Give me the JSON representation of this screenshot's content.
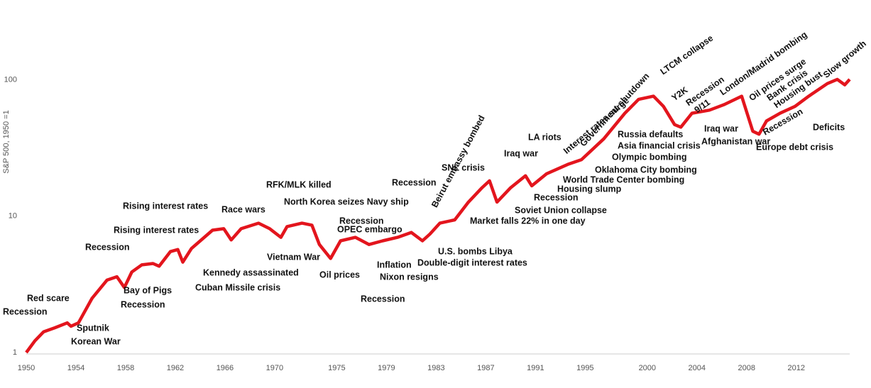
{
  "chart_data": {
    "type": "line",
    "y_label": "S&P 500, 1950 =1",
    "log_scale": true,
    "color": "#e3151d",
    "xlim": [
      1950,
      2016.3
    ],
    "xticks": [
      1950,
      1954,
      1958,
      1962,
      1966,
      1970,
      1975,
      1979,
      1983,
      1987,
      1991,
      1995,
      2000,
      2004,
      2008,
      2012
    ],
    "ylim": [
      1,
      300
    ],
    "yticks": [
      1,
      10,
      100
    ],
    "x": [
      1950.0,
      1950.7,
      1951.4,
      1952.3,
      1953.3,
      1953.6,
      1954.2,
      1955.3,
      1956.5,
      1957.3,
      1957.9,
      1958.5,
      1959.3,
      1960.2,
      1960.7,
      1961.6,
      1962.2,
      1962.6,
      1963.3,
      1965.0,
      1965.9,
      1966.5,
      1967.3,
      1968.7,
      1969.6,
      1970.5,
      1971.0,
      1972.2,
      1973.0,
      1973.6,
      1974.5,
      1975.3,
      1976.5,
      1977.6,
      1978.7,
      1979.9,
      1981.0,
      1981.9,
      1982.5,
      1983.3,
      1984.5,
      1985.6,
      1986.7,
      1987.3,
      1987.9,
      1989.0,
      1990.2,
      1990.7,
      1991.9,
      1993.6,
      1994.7,
      1996.5,
      1998.2,
      1999.3,
      2000.5,
      2001.3,
      2002.2,
      2002.7,
      2003.6,
      2005.0,
      2006.2,
      2007.6,
      2008.5,
      2009.0,
      2009.6,
      2010.7,
      2011.9,
      2013.0,
      2014.5,
      2015.3,
      2015.9,
      2016.3
    ],
    "values": [
      1.0,
      1.22,
      1.42,
      1.52,
      1.65,
      1.56,
      1.65,
      2.5,
      3.4,
      3.6,
      3.0,
      3.9,
      4.4,
      4.5,
      4.3,
      5.5,
      5.7,
      4.6,
      5.8,
      7.9,
      8.1,
      6.7,
      8.1,
      8.9,
      8.1,
      7.0,
      8.4,
      8.9,
      8.6,
      6.2,
      4.9,
      6.6,
      7.0,
      6.2,
      6.6,
      7.0,
      7.6,
      6.6,
      7.4,
      8.9,
      9.4,
      12.7,
      16.2,
      18.2,
      12.7,
      16.2,
      19.8,
      16.7,
      20.5,
      24,
      26,
      37,
      57,
      72,
      76,
      64,
      47,
      45,
      57,
      60,
      66,
      76,
      42,
      40,
      50,
      57,
      64,
      76,
      94,
      101,
      92,
      101
    ],
    "annotations": [
      "Recession",
      "Red scare",
      "Korean War",
      "Sputnik",
      "Recession",
      "Bay of Pigs",
      "Recession",
      "Rising interest rates",
      "Rising interest rates",
      "Kennedy assassinated",
      "Cuban Missile crisis",
      "Race wars",
      "RFK/MLK killed",
      "North Korea seizes Navy ship",
      "Vietnam War",
      "Recession",
      "OPEC embargo",
      "Oil prices",
      "Inflation",
      "Nixon resigns",
      "Recession",
      "Recession",
      "Double-digit interest rates",
      "Beirut embassy bombed",
      "U.S. bombs Libya",
      "SNL crisis",
      "Market falls 22% in one day",
      "Soviet Union collapse",
      "Iraq war",
      "Recession",
      "Housing slump",
      "World Trade Center bombing",
      "Oklahoma City bombing",
      "Olympic bombing",
      "LA riots",
      "Asia financial crisis",
      "Russia defaults",
      "Interest rates surge",
      "Government shutdown",
      "LTCM collapse",
      "Y2K",
      "Recession",
      "9/11",
      "London/Madrid bombing",
      "Oil prices surge",
      "Bank crisis",
      "Housing bust",
      "Slow growth",
      "Iraq war",
      "Afghanistan war",
      "Recession",
      "Europe debt crisis",
      "Deficits"
    ]
  }
}
